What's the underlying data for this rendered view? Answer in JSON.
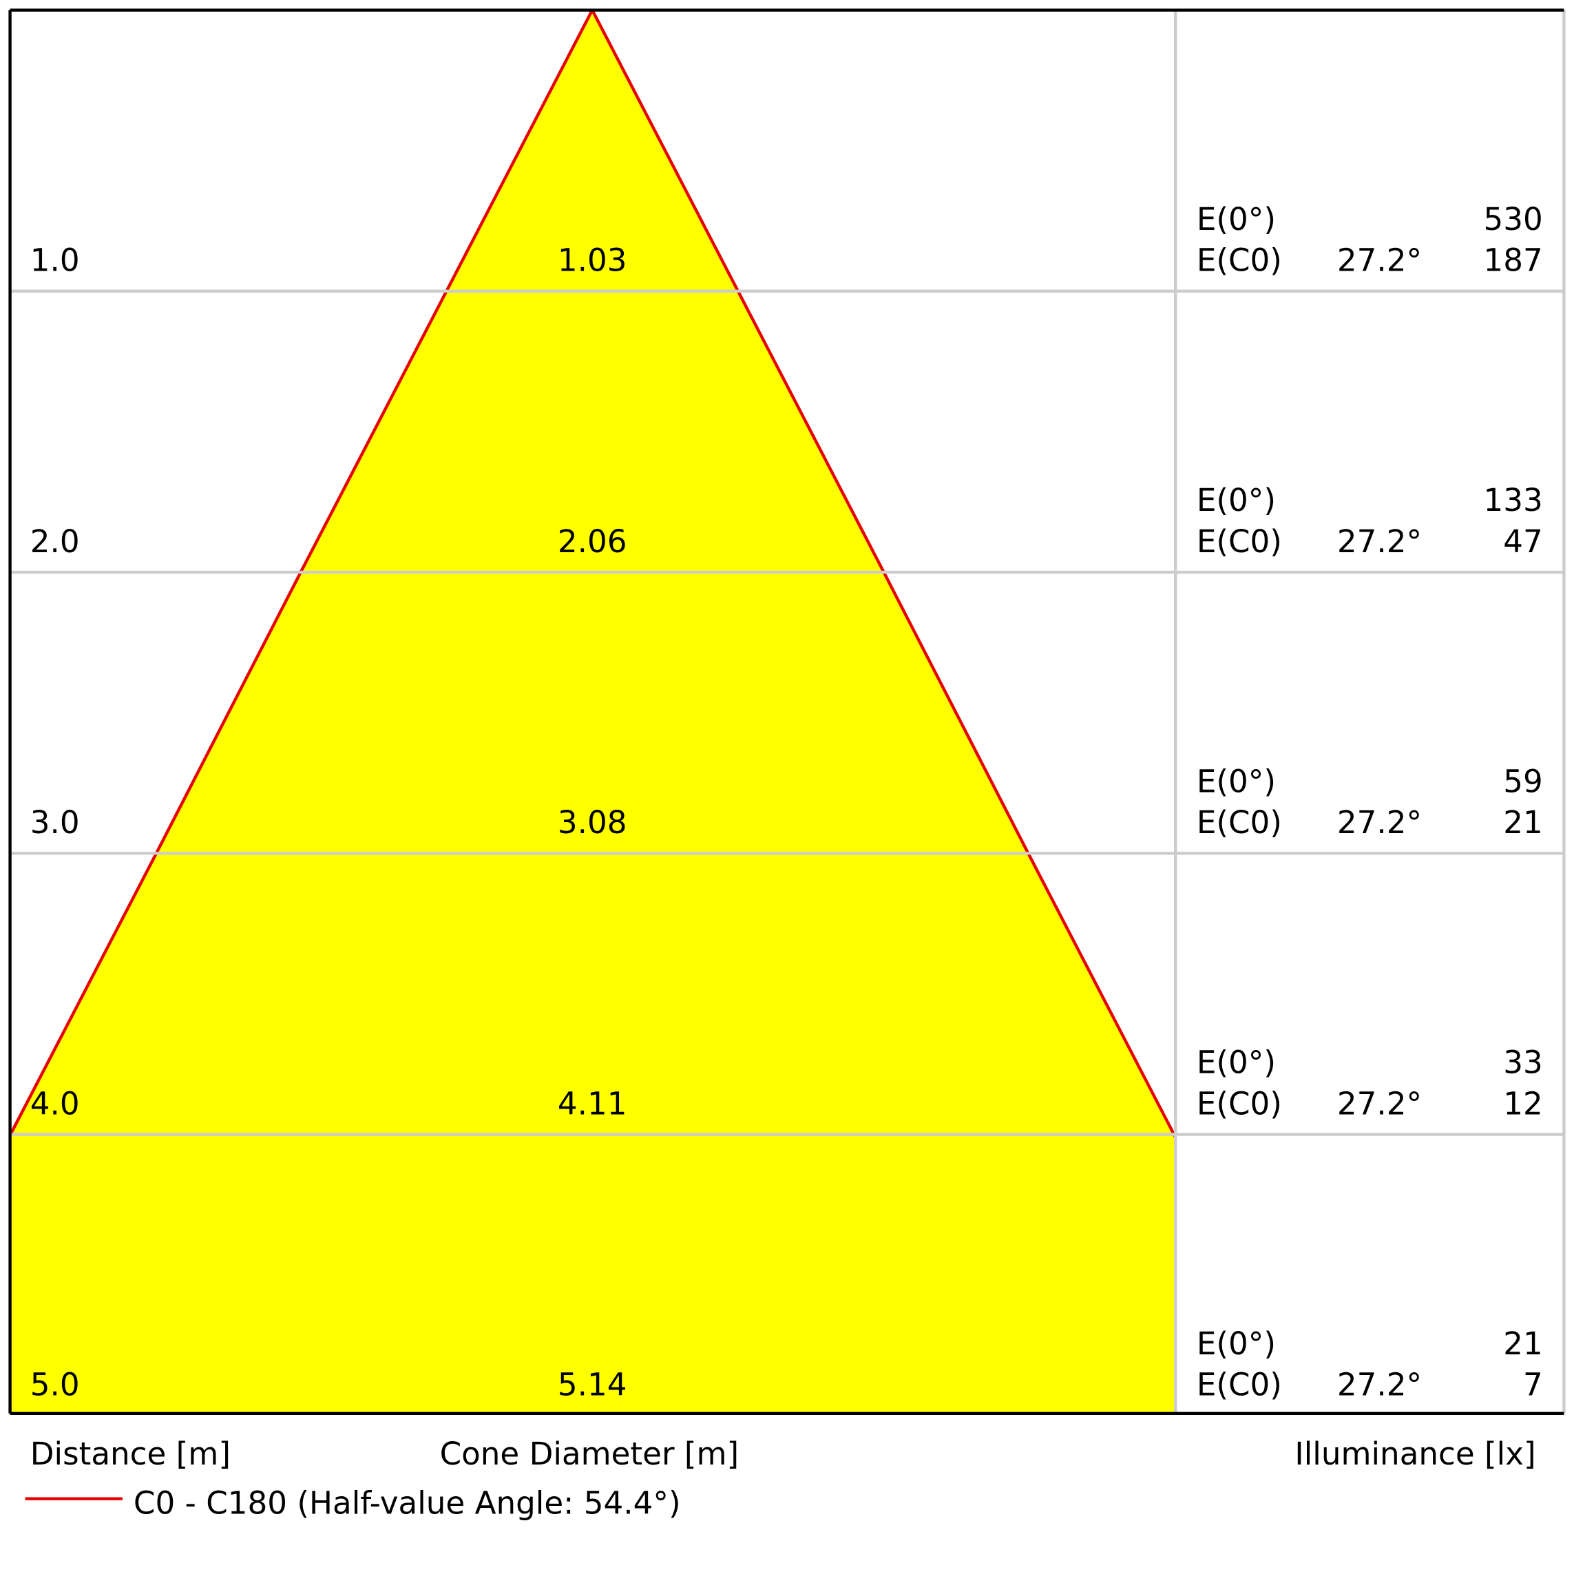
{
  "chart_data": {
    "type": "cone",
    "y_label": "Distance [m]",
    "x_label": "Cone Diameter [m]",
    "table_label": "Illuminance [lx]",
    "legend_label": "C0 - C180 (Half-value Angle: 54.4°)",
    "color": "#e60000",
    "fill": "#ffff00",
    "e0_label": "E(0°)",
    "ec0_label": "E(C0)",
    "distances": [
      {
        "value": 1,
        "label": "1.0"
      },
      {
        "value": 2,
        "label": "2.0"
      },
      {
        "value": 3,
        "label": "3.0"
      },
      {
        "value": 4,
        "label": "4.0"
      },
      {
        "value": 5,
        "label": "5.0"
      }
    ],
    "diameters": [
      1.03,
      2.06,
      3.08,
      4.11,
      5.14
    ],
    "e0": [
      530,
      133,
      59,
      33,
      21
    ],
    "ec0_angle": [
      {
        "value": 27.2,
        "label": "27.2°"
      },
      {
        "value": 27.2,
        "label": "27.2°"
      },
      {
        "value": 27.2,
        "label": "27.2°"
      },
      {
        "value": 27.2,
        "label": "27.2°"
      },
      {
        "value": 27.2,
        "label": "27.2°"
      }
    ],
    "ec0": [
      187,
      47,
      21,
      12,
      7
    ]
  }
}
